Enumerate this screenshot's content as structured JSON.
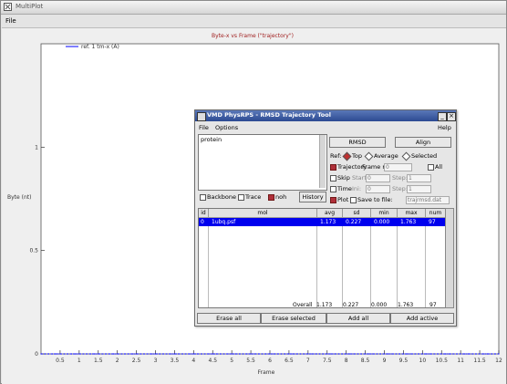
{
  "window": {
    "title": "MultiPlot",
    "file_menu": "File"
  },
  "plot": {
    "title": "Byte-x vs Frame (\"trajectory\")",
    "legend_label": "ref. 1 tm-x (A)",
    "y_label": "Byte (nt)",
    "x_label": "Frame"
  },
  "chart_data": {
    "type": "line",
    "title": "Byte-x vs Frame (\"trajectory\")",
    "xlabel": "Frame",
    "ylabel": "Byte (nt)",
    "xlim": [
      0,
      12
    ],
    "ylim": [
      0,
      1.5
    ],
    "x_ticks": [
      "0.5",
      "1",
      "1.5",
      "2",
      "2.5",
      "3",
      "3.5",
      "4",
      "4.5",
      "5",
      "5.5",
      "6",
      "6.5",
      "7",
      "7.5",
      "8",
      "8.5",
      "9",
      "9.5",
      "10",
      "10.5",
      "11",
      "11.5",
      "12"
    ],
    "y_ticks": [
      "0",
      "0.5",
      "1"
    ],
    "series": [
      {
        "name": "ref. 1 tm-x (A)",
        "color": "#0000ff",
        "x": [
          0.0,
          0.1,
          0.2,
          0.3,
          0.4,
          0.5,
          0.6,
          0.7,
          0.8,
          0.9,
          1.0,
          1.1,
          1.2,
          1.3,
          1.4,
          1.5,
          1.6,
          1.7,
          1.8,
          1.9,
          2.0,
          2.1,
          2.2,
          2.3,
          2.4,
          2.5,
          2.6,
          2.7,
          2.8,
          2.9,
          3.0,
          3.1,
          3.2,
          3.3,
          3.4,
          3.5,
          3.6,
          3.7,
          3.8,
          3.9,
          4.0,
          4.1,
          4.2,
          4.3,
          4.4,
          4.5,
          4.6,
          4.7,
          4.8,
          4.9,
          5.0,
          5.1,
          5.2,
          5.3,
          5.4,
          5.5,
          5.6,
          5.7,
          5.8,
          5.9,
          6.0,
          6.1,
          6.2,
          6.3,
          6.4,
          6.5,
          6.6,
          6.7,
          6.8,
          6.9,
          7.0,
          7.1,
          7.2,
          7.3,
          7.4,
          7.5,
          7.6,
          7.7,
          7.8,
          7.9,
          8.0,
          8.1,
          8.2,
          8.3,
          8.4,
          8.5,
          8.6,
          8.7,
          8.8,
          8.9,
          9.0,
          9.1,
          9.2,
          9.3,
          9.4,
          9.5,
          9.6,
          9.7,
          9.8,
          9.9,
          10.0,
          10.1,
          10.2,
          10.3,
          10.4,
          10.5,
          10.6,
          10.7,
          10.8,
          10.9,
          11.0,
          11.1,
          11.2,
          11.3,
          11.4,
          11.5,
          11.6,
          11.7,
          11.8,
          11.9,
          12.0
        ],
        "y": [
          0.0,
          0.0,
          0.0,
          0.0,
          0.0,
          0.0,
          0.0,
          0.0,
          0.0,
          0.0,
          0.0,
          0.0,
          0.0,
          0.0,
          0.0,
          0.0,
          0.0,
          0.0,
          0.0,
          0.0,
          0.0,
          0.0,
          0.0,
          0.0,
          0.0,
          0.0,
          0.0,
          0.0,
          0.0,
          0.0,
          0.0,
          0.0,
          0.0,
          0.0,
          0.0,
          0.0,
          0.0,
          0.0,
          0.0,
          0.0,
          0.0,
          0.0,
          0.0,
          0.0,
          0.0,
          0.0,
          0.0,
          0.0,
          0.0,
          0.0,
          0.0,
          0.0,
          0.0,
          0.0,
          0.0,
          0.0,
          0.0,
          0.0,
          0.0,
          0.0,
          0.0,
          0.0,
          0.0,
          0.0,
          0.0,
          0.0,
          0.0,
          0.0,
          0.0,
          0.0,
          0.0,
          0.0,
          0.0,
          0.0,
          0.0,
          0.0,
          0.0,
          0.0,
          0.0,
          0.0,
          0.0,
          0.0,
          0.0,
          0.0,
          0.0,
          0.0,
          0.0,
          0.0,
          0.0,
          0.0,
          0.0,
          0.0,
          0.0,
          0.0,
          0.0,
          0.0,
          0.0,
          0.0,
          0.0,
          0.0,
          0.0,
          0.0,
          0.0,
          0.0,
          0.0,
          0.0,
          0.0,
          0.0,
          0.0,
          0.0,
          0.0,
          0.0,
          0.0,
          0.0,
          0.0,
          0.0,
          0.0,
          0.0,
          0.0,
          0.0,
          0.0
        ]
      }
    ],
    "grid": false,
    "legend": "top-left"
  },
  "subwin": {
    "title": "VMD PhysRPS - RMSD Trajectory Tool",
    "menu_file": "File",
    "menu_options": "Options",
    "menu_help": "Help",
    "selection_text": "protein",
    "btn_rmsd": "RMSD",
    "btn_align": "Align",
    "ref_label": "Ref:",
    "ref_top": "Top",
    "ref_average": "Average",
    "ref_selected": "Selected",
    "traj_label": "Trajectory",
    "frame_ref_label": "Frame ref:",
    "frame_ref_value": "0",
    "all_label": "All",
    "skip_label": "Skip",
    "start_label": "Start:",
    "start_value": "0",
    "step_label": "Step:",
    "step_value": "1",
    "time_label": "Time",
    "ini_label": "Ini:",
    "ini_value": "0",
    "plot_label": "Plot",
    "savetofile_label": "Save to file:",
    "savetofile_value": "trajrmsd.dat",
    "backbone_label": "Backbone",
    "trace_label": "Trace",
    "noh_label": "noh",
    "history_label": "History",
    "table": {
      "headers": [
        "id",
        "mol",
        "avg",
        "sd",
        "min",
        "max",
        "num"
      ],
      "row": [
        "0",
        "1ubq.psf",
        "1.173",
        "0.227",
        "0.000",
        "1.763",
        "97"
      ],
      "overall_label": "Overall",
      "overall_values": [
        "1.173",
        "0.227",
        "0.000",
        "1.763",
        "97"
      ]
    },
    "bottom": [
      "Erase all",
      "Erase selected",
      "Add all",
      "Add active"
    ]
  }
}
